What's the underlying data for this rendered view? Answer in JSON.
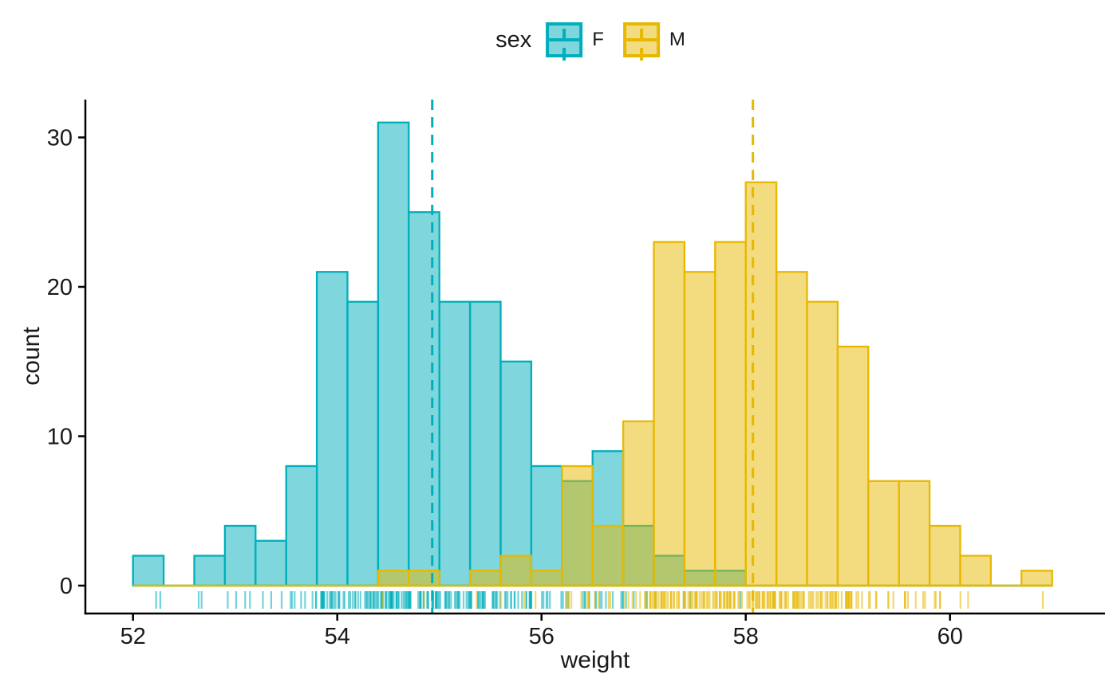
{
  "legend": {
    "title": "sex",
    "items": [
      {
        "label": "F",
        "color": "#00AFBB"
      },
      {
        "label": "M",
        "color": "#E7B800"
      }
    ]
  },
  "x_axis": {
    "title": "weight",
    "ticks": [
      52,
      54,
      56,
      58,
      60
    ]
  },
  "y_axis": {
    "title": "count",
    "ticks": [
      0,
      10,
      20,
      30
    ]
  },
  "chart_data": {
    "type": "bar",
    "subtype": "overlaid-histogram-with-mean-vlines-and-rug",
    "title": "",
    "xlabel": "weight",
    "ylabel": "count",
    "legend_title": "sex",
    "legend_position": "top-center",
    "grid": false,
    "background": "#ffffff",
    "bin_start": 52.0,
    "bin_width": 0.3,
    "xlim": [
      51.53,
      61.52
    ],
    "ylim": [
      0,
      32.5
    ],
    "x_ticks": [
      52,
      54,
      56,
      58,
      60
    ],
    "y_ticks": [
      0,
      10,
      20,
      30
    ],
    "series": [
      {
        "name": "F",
        "stroke": "#00AFBB",
        "fill": "#00AFBB",
        "fill_opacity": 0.5,
        "mean_line": 54.93,
        "mean_line_style": "dashed",
        "rug": true,
        "counts": [
          2,
          0,
          2,
          4,
          3,
          8,
          21,
          19,
          31,
          25,
          19,
          19,
          15,
          8,
          7,
          9,
          4,
          2,
          1,
          1,
          0,
          0,
          0,
          0,
          0,
          0,
          0,
          0,
          0,
          0
        ]
      },
      {
        "name": "M",
        "stroke": "#E7B800",
        "fill": "#E7B800",
        "fill_opacity": 0.5,
        "mean_line": 58.07,
        "mean_line_style": "dashed",
        "rug": true,
        "counts": [
          0,
          0,
          0,
          0,
          0,
          0,
          0,
          0,
          1,
          1,
          0,
          1,
          2,
          1,
          8,
          4,
          11,
          23,
          21,
          23,
          27,
          21,
          19,
          16,
          7,
          7,
          4,
          2,
          0,
          1
        ]
      }
    ],
    "axis_color": "#000000",
    "text_color": "#1a1a1a"
  }
}
